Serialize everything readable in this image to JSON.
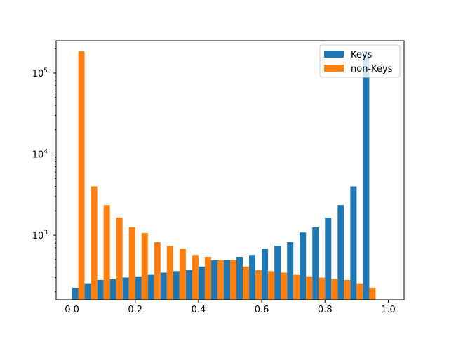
{
  "chart_data": {
    "type": "bar",
    "scale_y": "log",
    "x_ticks": [
      "0.0",
      "0.2",
      "0.4",
      "0.6",
      "0.8",
      "1.0"
    ],
    "x_range": [
      -0.05,
      1.05
    ],
    "y_ticks": [
      {
        "value": 1000,
        "base": "10",
        "exp": "3"
      },
      {
        "value": 10000,
        "base": "10",
        "exp": "4"
      },
      {
        "value": 100000,
        "base": "10",
        "exp": "5"
      }
    ],
    "y_range": [
      160,
      250000
    ],
    "bin_width": 0.04,
    "bin_starts": [
      0.0,
      0.04,
      0.08,
      0.12,
      0.16,
      0.2,
      0.24,
      0.28,
      0.32,
      0.36,
      0.4,
      0.44,
      0.48,
      0.52,
      0.56,
      0.6,
      0.64,
      0.68,
      0.72,
      0.76,
      0.8,
      0.84,
      0.88,
      0.92,
      0.96
    ],
    "series": [
      {
        "name": "Keys",
        "color": "#1f77b4",
        "values": [
          225,
          255,
          280,
          285,
          300,
          310,
          330,
          345,
          360,
          370,
          410,
          490,
          490,
          540,
          570,
          680,
          740,
          820,
          1080,
          1250,
          1650,
          2350,
          4000,
          185000,
          0
        ]
      },
      {
        "name": "non-Keys",
        "color": "#ff7f0e",
        "values": [
          185000,
          4000,
          2350,
          1650,
          1250,
          1060,
          820,
          740,
          680,
          570,
          540,
          490,
          490,
          410,
          370,
          360,
          345,
          330,
          310,
          300,
          285,
          280,
          255,
          225,
          0
        ]
      }
    ],
    "legend_position": "upper right",
    "grid": false
  }
}
